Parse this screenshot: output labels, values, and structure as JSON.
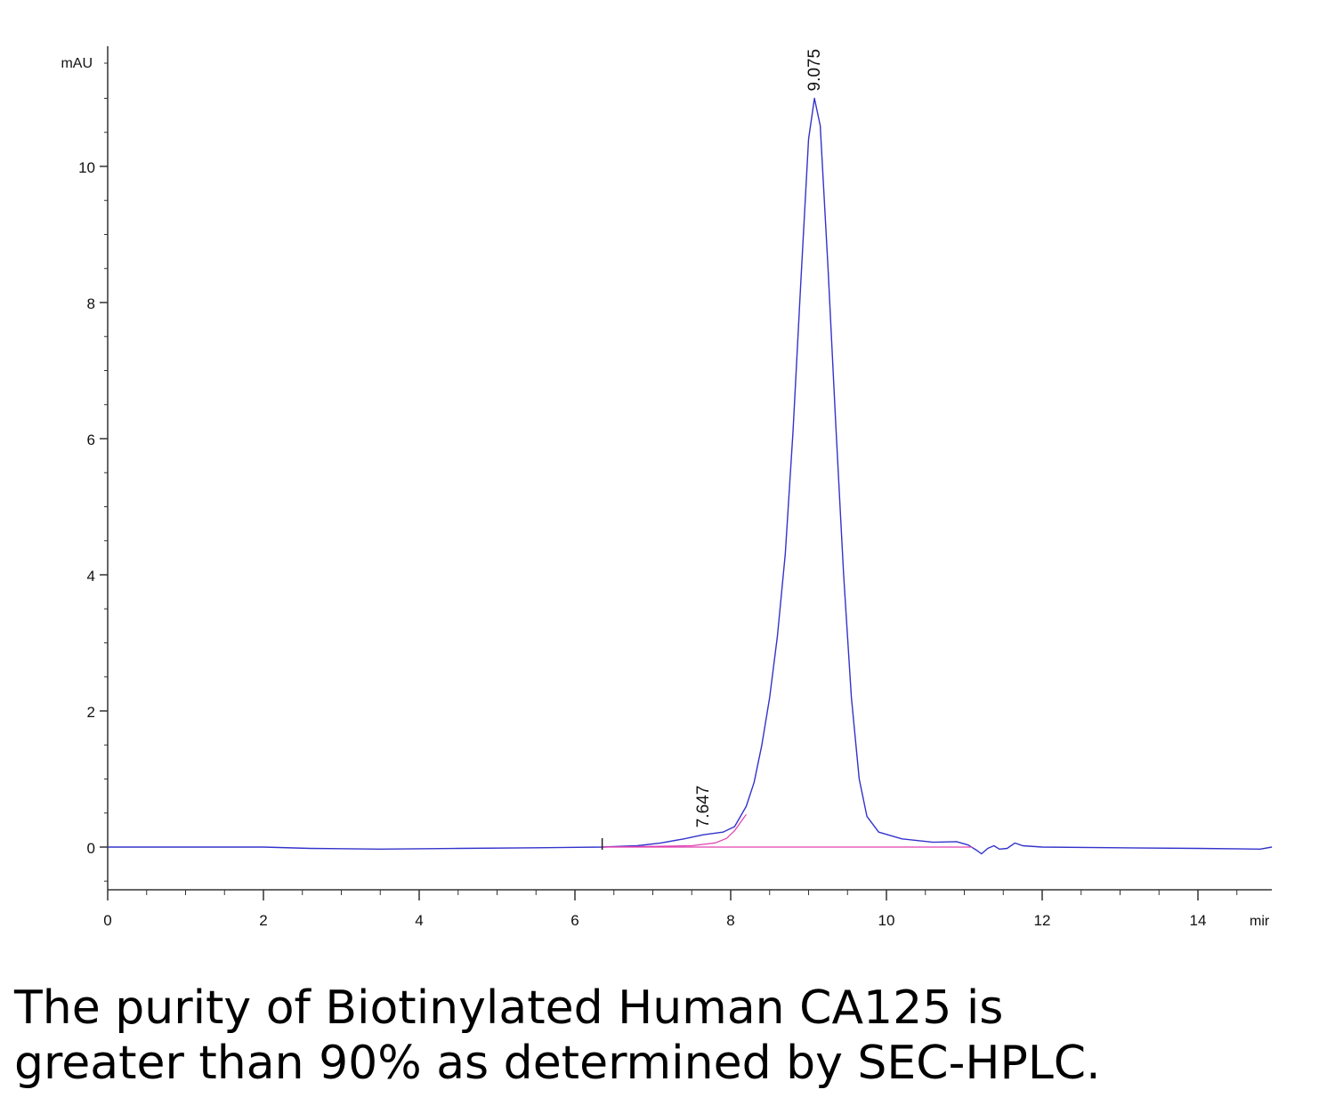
{
  "chart_data": {
    "type": "line",
    "y_unit": "mAU",
    "x_unit": "mir",
    "xlim": [
      0,
      15
    ],
    "ylim": [
      -0.6,
      11.4
    ],
    "x_ticks": [
      0,
      2,
      4,
      6,
      8,
      10,
      12,
      14
    ],
    "y_ticks": [
      0,
      2,
      4,
      6,
      8,
      10
    ],
    "grid": false,
    "integration_start_x": 6.35,
    "series": [
      {
        "color": "#3333cc",
        "points": [
          [
            0.0,
            0.0
          ],
          [
            1.0,
            0.0
          ],
          [
            2.0,
            0.0
          ],
          [
            2.6,
            -0.02
          ],
          [
            3.5,
            -0.03
          ],
          [
            4.5,
            -0.02
          ],
          [
            5.5,
            -0.01
          ],
          [
            6.35,
            0.0
          ],
          [
            6.8,
            0.02
          ],
          [
            7.1,
            0.06
          ],
          [
            7.4,
            0.12
          ],
          [
            7.647,
            0.18
          ],
          [
            7.9,
            0.22
          ],
          [
            8.05,
            0.3
          ],
          [
            8.2,
            0.6
          ],
          [
            8.3,
            0.95
          ],
          [
            8.4,
            1.5
          ],
          [
            8.5,
            2.2
          ],
          [
            8.6,
            3.1
          ],
          [
            8.7,
            4.3
          ],
          [
            8.8,
            6.1
          ],
          [
            8.9,
            8.3
          ],
          [
            9.0,
            10.4
          ],
          [
            9.075,
            11.0
          ],
          [
            9.15,
            10.6
          ],
          [
            9.25,
            8.5
          ],
          [
            9.35,
            6.2
          ],
          [
            9.45,
            4.0
          ],
          [
            9.55,
            2.2
          ],
          [
            9.65,
            1.0
          ],
          [
            9.75,
            0.45
          ],
          [
            9.9,
            0.22
          ],
          [
            10.2,
            0.12
          ],
          [
            10.6,
            0.07
          ],
          [
            10.9,
            0.08
          ],
          [
            11.05,
            0.03
          ],
          [
            11.15,
            -0.04
          ],
          [
            11.22,
            -0.1
          ],
          [
            11.3,
            -0.02
          ],
          [
            11.38,
            0.02
          ],
          [
            11.45,
            -0.03
          ],
          [
            11.55,
            -0.02
          ],
          [
            11.65,
            0.06
          ],
          [
            11.75,
            0.02
          ],
          [
            12.0,
            0.0
          ],
          [
            13.0,
            -0.01
          ],
          [
            14.0,
            -0.02
          ],
          [
            14.8,
            -0.03
          ],
          [
            14.95,
            0.0
          ]
        ]
      },
      {
        "color": "#e040b0",
        "points": [
          [
            6.35,
            0.0
          ],
          [
            7.0,
            0.01
          ],
          [
            7.5,
            0.02
          ],
          [
            7.8,
            0.06
          ],
          [
            7.95,
            0.13
          ],
          [
            8.05,
            0.24
          ],
          [
            8.15,
            0.4
          ],
          [
            8.2,
            0.48
          ]
        ]
      },
      {
        "color": "#e040b0",
        "points": [
          [
            6.35,
            0.0
          ],
          [
            11.1,
            0.0
          ]
        ]
      }
    ],
    "peaks": [
      {
        "label": "7.647",
        "x": 7.647,
        "y": 0.18
      },
      {
        "label": "9.075",
        "x": 9.075,
        "y": 11.0
      }
    ]
  },
  "caption": {
    "line1": "The purity of Biotinylated Human CA125 is",
    "line2": "greater than 90% as determined by SEC-HPLC."
  }
}
